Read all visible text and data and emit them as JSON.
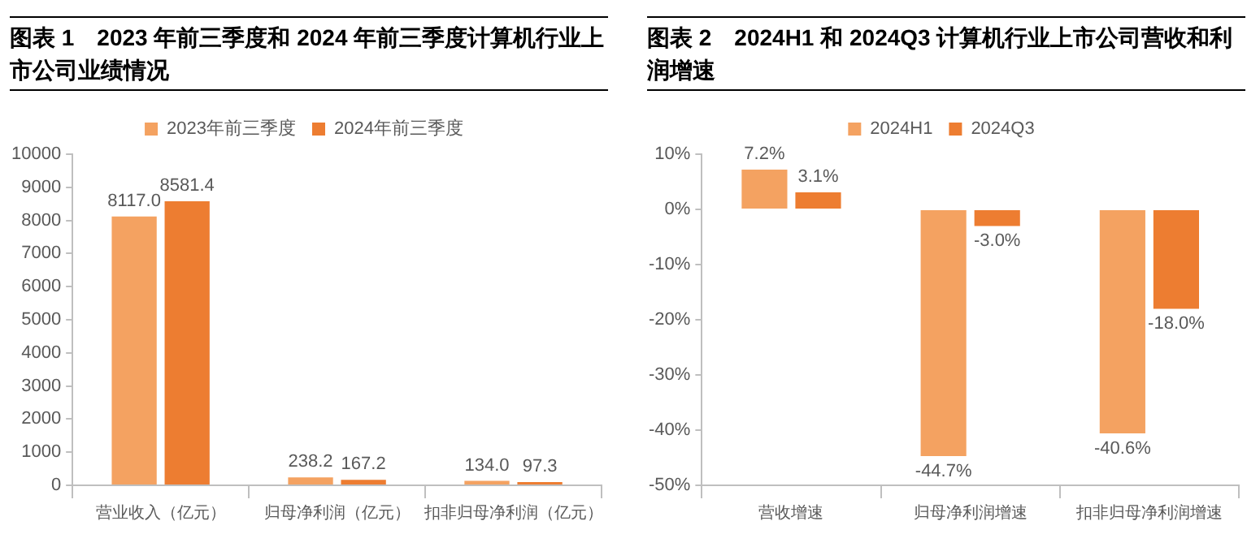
{
  "chart_data": [
    {
      "type": "bar",
      "title": "图表 1　2023 年前三季度和 2024 年前三季度计算机行业上市公司业绩情况",
      "categories": [
        "营业收入（亿元）",
        "归母净利润（亿元）",
        "扣非归母净利润（亿元）"
      ],
      "series": [
        {
          "name": "2023年前三季度",
          "color": "#f4a261",
          "values": [
            8117.0,
            238.2,
            134.0
          ],
          "value_labels": [
            "8117.0",
            "238.2",
            "134.0"
          ]
        },
        {
          "name": "2024年前三季度",
          "color": "#ed7d31",
          "values": [
            8581.4,
            167.2,
            97.3
          ],
          "value_labels": [
            "8581.4",
            "167.2",
            "97.3"
          ]
        }
      ],
      "ylim": [
        0,
        10000
      ],
      "yticks": [
        0,
        1000,
        2000,
        3000,
        4000,
        5000,
        6000,
        7000,
        8000,
        9000,
        10000
      ],
      "grid": false,
      "legend": "top"
    },
    {
      "type": "bar",
      "title": "图表 2　2024H1 和 2024Q3 计算机行业上市公司营收和利润增速",
      "categories": [
        "营收增速",
        "归母净利润增速",
        "扣非归母净利润增速"
      ],
      "series": [
        {
          "name": "2024H1",
          "color": "#f4a261",
          "values": [
            7.2,
            -44.7,
            -40.6
          ],
          "value_labels": [
            "7.2%",
            "-44.7%",
            "-40.6%"
          ]
        },
        {
          "name": "2024Q3",
          "color": "#ed7d31",
          "values": [
            3.1,
            -3.0,
            -18.0
          ],
          "value_labels": [
            "3.1%",
            "-3.0%",
            "-18.0%"
          ]
        }
      ],
      "ylim": [
        -50,
        10
      ],
      "yticks": [
        {
          "value": -50,
          "label": "-50%"
        },
        {
          "value": -40,
          "label": "-40%"
        },
        {
          "value": -30,
          "label": "-30%"
        },
        {
          "value": -20,
          "label": "-20%"
        },
        {
          "value": -10,
          "label": "-10%"
        },
        {
          "value": 0,
          "label": "0%"
        },
        {
          "value": 10,
          "label": "10%"
        }
      ],
      "grid": false,
      "legend": "top"
    }
  ]
}
